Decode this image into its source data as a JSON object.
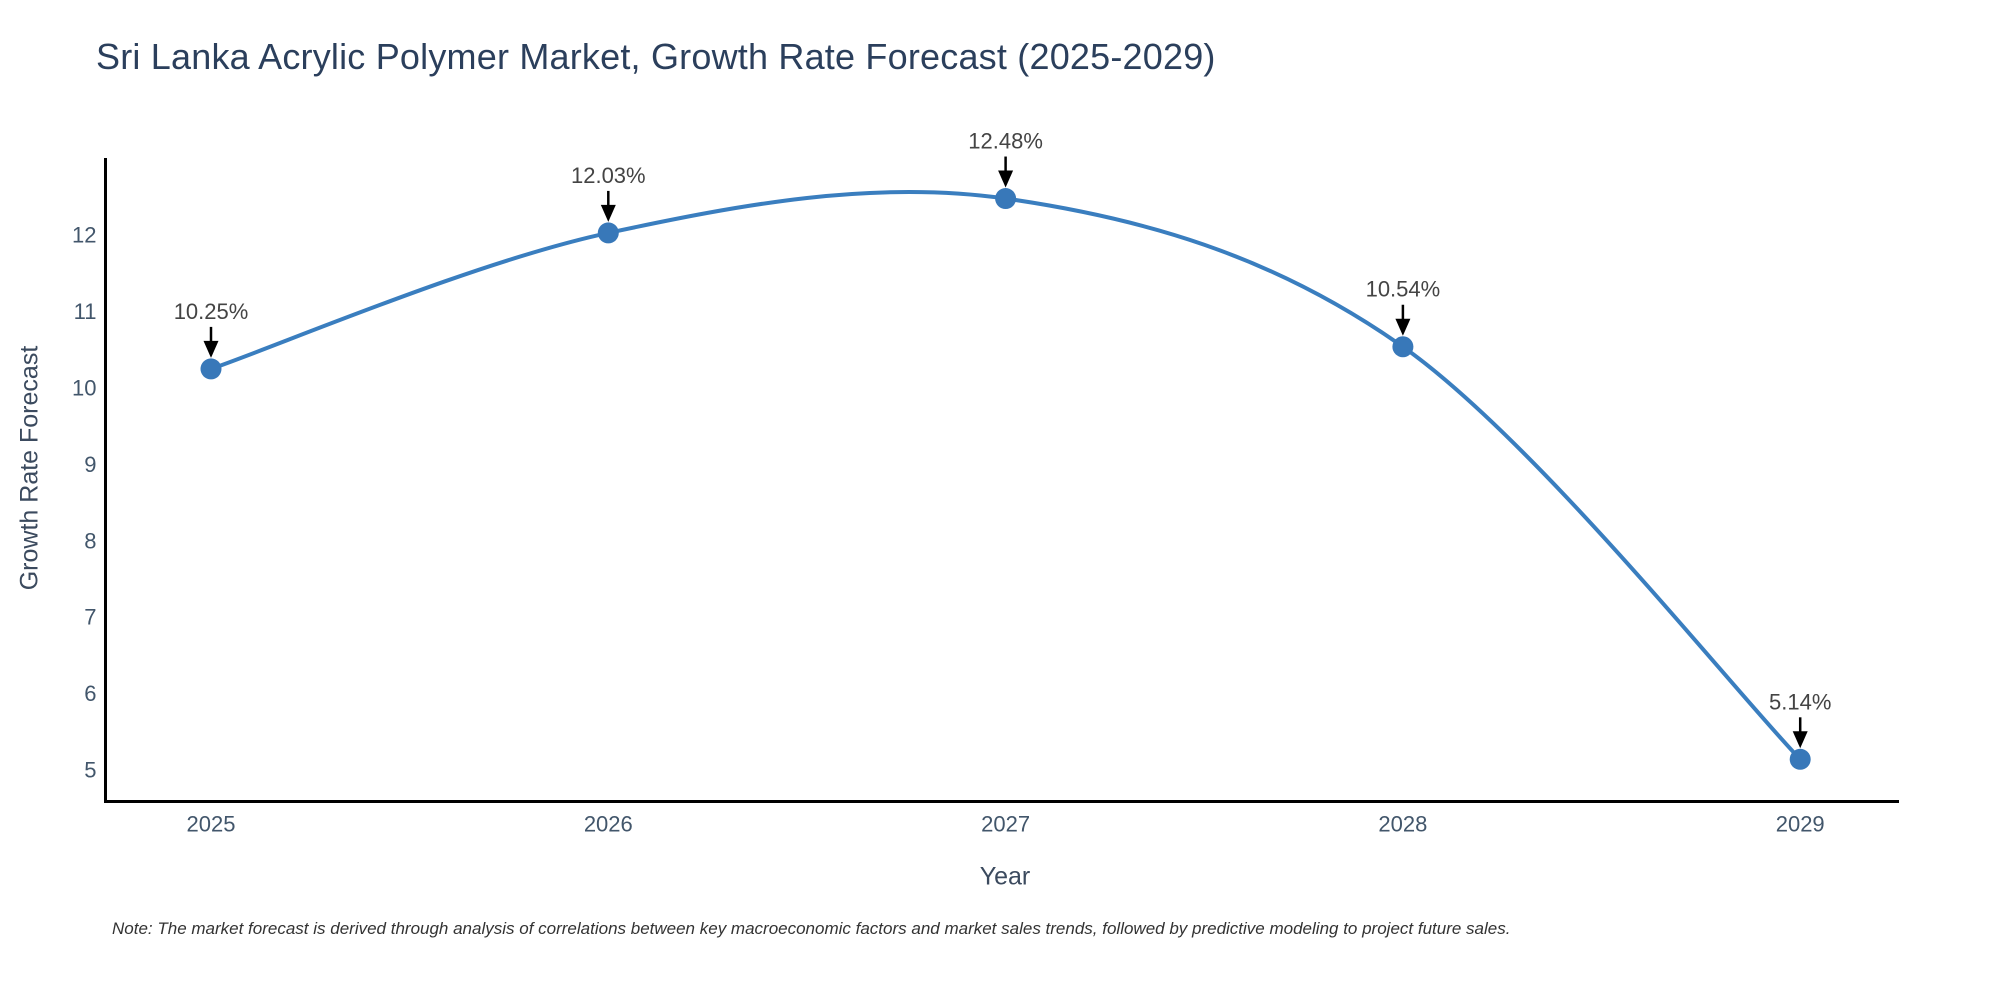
{
  "chart_data": {
    "type": "line",
    "title": "Sri Lanka Acrylic Polymer Market, Growth Rate Forecast (2025-2029)",
    "xlabel": "Year",
    "ylabel": "Growth Rate Forecast",
    "x": [
      "2025",
      "2026",
      "2027",
      "2028",
      "2029"
    ],
    "series": [
      {
        "name": "Growth Rate Forecast",
        "values": [
          10.25,
          12.03,
          12.48,
          10.54,
          5.14
        ]
      }
    ],
    "point_labels": [
      "10.25%",
      "12.03%",
      "12.48%",
      "10.54%",
      "5.14%"
    ],
    "yticks": [
      5,
      6,
      7,
      8,
      9,
      10,
      11,
      12
    ],
    "ylim": [
      4.6,
      13.0
    ],
    "line_shape": "spline",
    "grid": false,
    "legend": false,
    "note": "Note: The market forecast is derived through analysis of correlations between key macroeconomic factors and market sales trends, followed by predictive modeling to project future sales.",
    "colors": {
      "line": "#3a7ebf",
      "marker": "#3878b9",
      "annotation_arrow": "#000000",
      "annotation_text": "#444444",
      "spine": "#000000",
      "title_text": "#2b3f5c",
      "axis_title_text": "#3b4a5e",
      "tick_text": "#42566b",
      "note_text": "#333333",
      "background": "#ffffff"
    }
  }
}
